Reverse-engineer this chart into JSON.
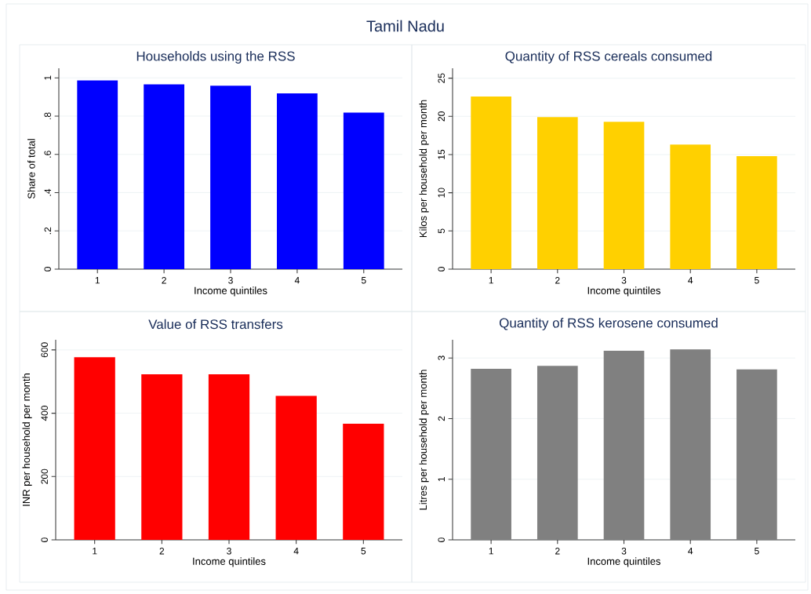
{
  "chart_data": [
    {
      "type": "other",
      "title": "Tamil Nadu"
    },
    {
      "type": "bar",
      "title": "Households using the RSS",
      "xlabel": "Income quintiles",
      "ylabel": "Share of total",
      "categories": [
        "1",
        "2",
        "3",
        "4",
        "5"
      ],
      "values": [
        0.986,
        0.966,
        0.959,
        0.919,
        0.818
      ],
      "color": "#0000ff",
      "ylim": [
        0,
        1.05
      ],
      "yticks": [
        0,
        {
          "value": 0.2,
          "label": ".2"
        },
        {
          "value": 0.4,
          "label": ".4"
        },
        {
          "value": 0.6,
          "label": ".6"
        },
        {
          "value": 0.8,
          "label": ".8"
        },
        1
      ],
      "grid": "y"
    },
    {
      "type": "bar",
      "title": "Quantity of RSS cereals consumed",
      "xlabel": "Income quintiles",
      "ylabel": "Kilos per household per month",
      "categories": [
        "1",
        "2",
        "3",
        "4",
        "5"
      ],
      "values": [
        22.6,
        19.9,
        19.3,
        16.3,
        14.8
      ],
      "color": "#ffd000",
      "ylim": [
        0,
        26.3
      ],
      "yticks": [
        0,
        5,
        10,
        15,
        20,
        25
      ],
      "grid": "y"
    },
    {
      "type": "bar",
      "title": "Value of RSS transfers",
      "xlabel": "Income quintiles",
      "ylabel": "INR per household per month",
      "categories": [
        "1",
        "2",
        "3",
        "4",
        "5"
      ],
      "values": [
        577,
        523,
        523,
        455,
        367
      ],
      "color": "#ff0000",
      "ylim": [
        0,
        632
      ],
      "yticks": [
        0,
        200,
        400,
        600
      ],
      "grid": "y"
    },
    {
      "type": "bar",
      "title": "Quantity of RSS kerosene consumed",
      "xlabel": "Income quintiles",
      "ylabel": "Litres per household per month",
      "categories": [
        "1",
        "2",
        "3",
        "4",
        "5"
      ],
      "values": [
        2.82,
        2.87,
        3.12,
        3.14,
        2.81
      ],
      "color": "#808080",
      "ylim": [
        0,
        3.3
      ],
      "yticks": [
        0,
        1,
        2,
        3
      ],
      "grid": "y"
    }
  ]
}
